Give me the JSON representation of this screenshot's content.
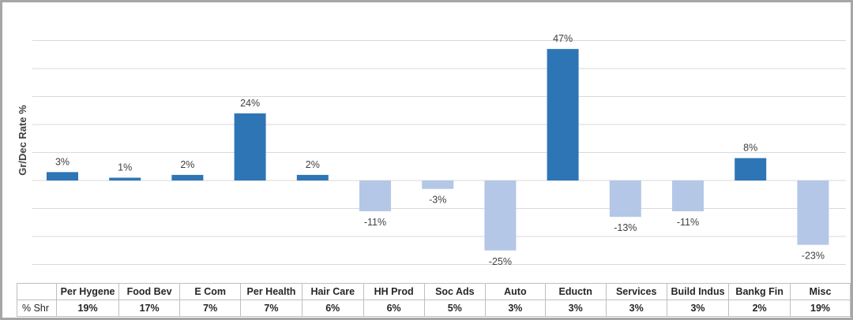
{
  "chart_data": {
    "type": "bar",
    "title": "",
    "xlabel": "",
    "ylabel": "Gr/Dec Rate %",
    "ylim": [
      -30,
      55
    ],
    "grid": true,
    "positive_color": "#2e75b6",
    "negative_color": "#b4c7e7",
    "categories": [
      "Per Hygene",
      "Food Bev",
      "E Com",
      "Per Health",
      "Hair Care",
      "HH Prod",
      "Soc Ads",
      "Auto",
      "Eductn",
      "Services",
      "Build Indus",
      "Bankg Fin",
      "Misc"
    ],
    "values": [
      3,
      1,
      2,
      24,
      2,
      -11,
      -3,
      -25,
      47,
      -13,
      -11,
      8,
      -23
    ],
    "value_labels": [
      "3%",
      "1%",
      "2%",
      "24%",
      "2%",
      "-11%",
      "-3%",
      "-25%",
      "47%",
      "-13%",
      "-11%",
      "8%",
      "-23%"
    ]
  },
  "table": {
    "row_label": "% Shr",
    "shares": [
      "19%",
      "17%",
      "7%",
      "7%",
      "6%",
      "6%",
      "5%",
      "3%",
      "3%",
      "3%",
      "3%",
      "2%",
      "19%"
    ]
  }
}
